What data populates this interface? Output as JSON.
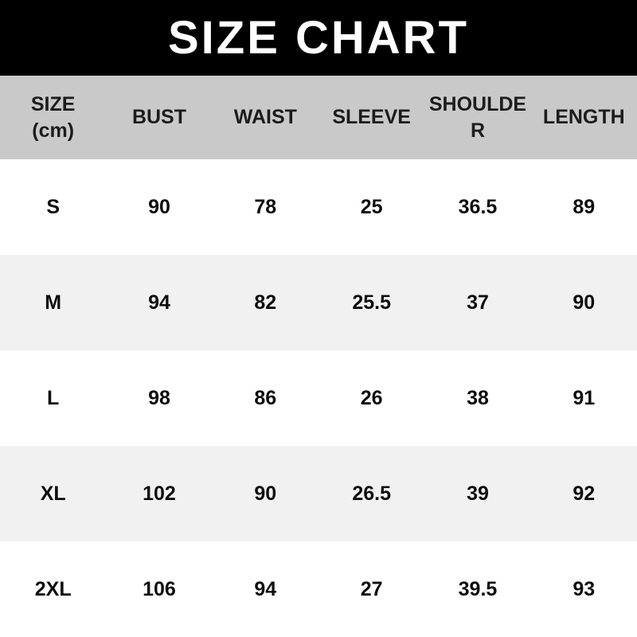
{
  "title": "SIZE CHART",
  "colors": {
    "title_bar_bg": "#000000",
    "title_text": "#ffffff",
    "header_bg": "#c9c9c9",
    "header_text": "#1c1c1c",
    "row_bg": "#ffffff",
    "row_alt_bg": "#f1f1f1",
    "cell_text": "#0d0d0d"
  },
  "chart_data": {
    "type": "table",
    "title": "SIZE CHART",
    "unit": "cm",
    "columns": [
      "SIZE (cm)",
      "BUST",
      "WAIST",
      "SLEEVE",
      "SHOULDER",
      "LENGTH"
    ],
    "rows": [
      [
        "S",
        "90",
        "78",
        "25",
        "36.5",
        "89"
      ],
      [
        "M",
        "94",
        "82",
        "25.5",
        "37",
        "90"
      ],
      [
        "L",
        "98",
        "86",
        "26",
        "38",
        "91"
      ],
      [
        "XL",
        "102",
        "90",
        "26.5",
        "39",
        "92"
      ],
      [
        "2XL",
        "106",
        "94",
        "27",
        "39.5",
        "93"
      ]
    ]
  }
}
